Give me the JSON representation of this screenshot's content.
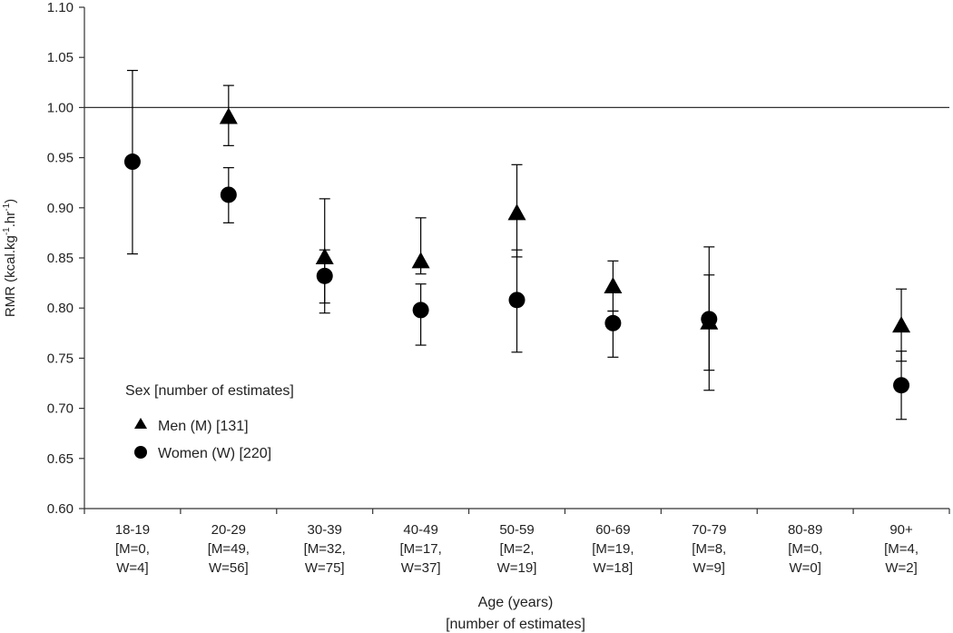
{
  "chart_data": {
    "type": "scatter",
    "title": "",
    "ylabel_main": "RMR (kcal.kg",
    "ylabel_sup1": "-1",
    "ylabel_mid": ".hr",
    "ylabel_sup2": "-1",
    "ylabel_end": ")",
    "xlabel_line1": "Age (years)",
    "xlabel_line2": "[number of estimates]",
    "ylim": [
      0.6,
      1.1
    ],
    "yticks": [
      "0.60",
      "0.65",
      "0.70",
      "0.75",
      "0.80",
      "0.85",
      "0.90",
      "0.95",
      "1.00",
      "1.05",
      "1.10"
    ],
    "reference_line": 1.0,
    "categories": [
      [
        "18-19",
        "[M=0,",
        "W=4]"
      ],
      [
        "20-29",
        "[M=49,",
        "W=56]"
      ],
      [
        "30-39",
        "[M=32,",
        "W=75]"
      ],
      [
        "40-49",
        "[M=17,",
        "W=37]"
      ],
      [
        "50-59",
        "[M=2,",
        "W=19]"
      ],
      [
        "60-69",
        "[M=19,",
        "W=18]"
      ],
      [
        "70-79",
        "[M=8,",
        "W=9]"
      ],
      [
        "80-89",
        "[M=0,",
        "W=0]"
      ],
      [
        "90+",
        "[M=4,",
        "W=2]"
      ]
    ],
    "legend_title": "Sex [number of estimates]",
    "series": [
      {
        "name": "Men (M) [131]",
        "marker": "triangle",
        "values": [
          null,
          0.99,
          0.85,
          0.846,
          0.894,
          0.821,
          0.785,
          null,
          0.782
        ],
        "err_low": [
          null,
          0.962,
          0.805,
          0.834,
          0.851,
          0.797,
          0.738,
          null,
          0.747
        ],
        "err_high": [
          null,
          1.022,
          0.909,
          0.89,
          0.943,
          0.847,
          0.833,
          null,
          0.819
        ]
      },
      {
        "name": "Women (W) [220]",
        "marker": "circle",
        "values": [
          0.946,
          0.913,
          0.832,
          0.798,
          0.808,
          0.785,
          0.789,
          null,
          0.723
        ],
        "err_low": [
          0.854,
          0.885,
          0.795,
          0.763,
          0.756,
          0.751,
          0.718,
          null,
          0.689
        ],
        "err_high": [
          1.037,
          0.94,
          0.858,
          0.824,
          0.858,
          0.797,
          0.861,
          null,
          0.757
        ]
      }
    ],
    "colors": {
      "axis": "#333333",
      "marker": "#000000",
      "text": "#222222"
    }
  }
}
